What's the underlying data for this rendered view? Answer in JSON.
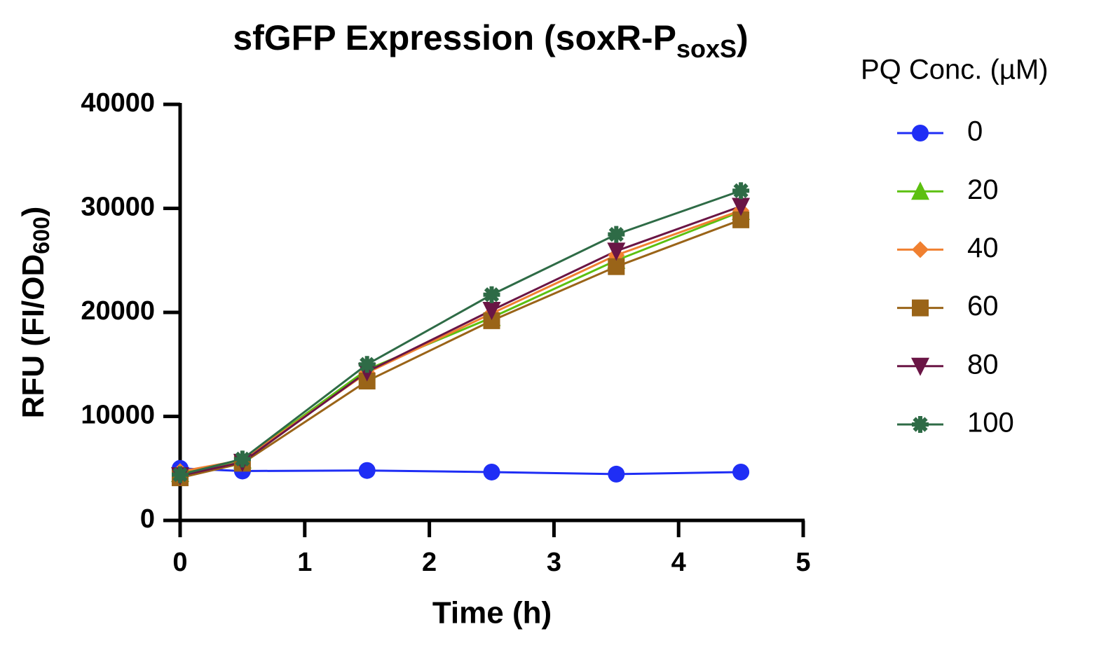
{
  "chart_data": {
    "type": "line",
    "title": [
      "sfGFP Expression (soxR-P",
      "soxS",
      ")"
    ],
    "x_label": "Time (h)",
    "y_label": [
      "RFU (FI/OD",
      "600",
      ")"
    ],
    "legend_title": "PQ Conc. (µM)",
    "legend_position": "right",
    "x": [
      0,
      0.5,
      1.5,
      2.5,
      3.5,
      4.5
    ],
    "series": [
      {
        "name": "0",
        "color": "#1f2ef5",
        "marker": "circle",
        "values": [
          5000,
          4750,
          4800,
          4650,
          4450,
          4650
        ]
      },
      {
        "name": "20",
        "color": "#5cc010",
        "marker": "triangle",
        "values": [
          4500,
          5800,
          14500,
          19500,
          25000,
          29700
        ]
      },
      {
        "name": "40",
        "color": "#f08030",
        "marker": "diamond",
        "values": [
          4700,
          5800,
          14200,
          19900,
          25500,
          29800
        ]
      },
      {
        "name": "60",
        "color": "#9a6418",
        "marker": "square",
        "values": [
          4100,
          5500,
          13400,
          19200,
          24400,
          28900
        ]
      },
      {
        "name": "80",
        "color": "#6a1545",
        "marker": "triangle-down",
        "values": [
          4300,
          5600,
          14300,
          20200,
          25900,
          30200
        ]
      },
      {
        "name": "100",
        "color": "#2e6b46",
        "marker": "star",
        "values": [
          4400,
          5900,
          15000,
          21700,
          27500,
          31700
        ]
      }
    ],
    "xlim": [
      0,
      5
    ],
    "xticks": [
      0,
      1,
      2,
      3,
      4,
      5
    ],
    "ylim": [
      0,
      40000
    ],
    "yticks": [
      0,
      10000,
      20000,
      30000,
      40000
    ],
    "grid": false
  }
}
